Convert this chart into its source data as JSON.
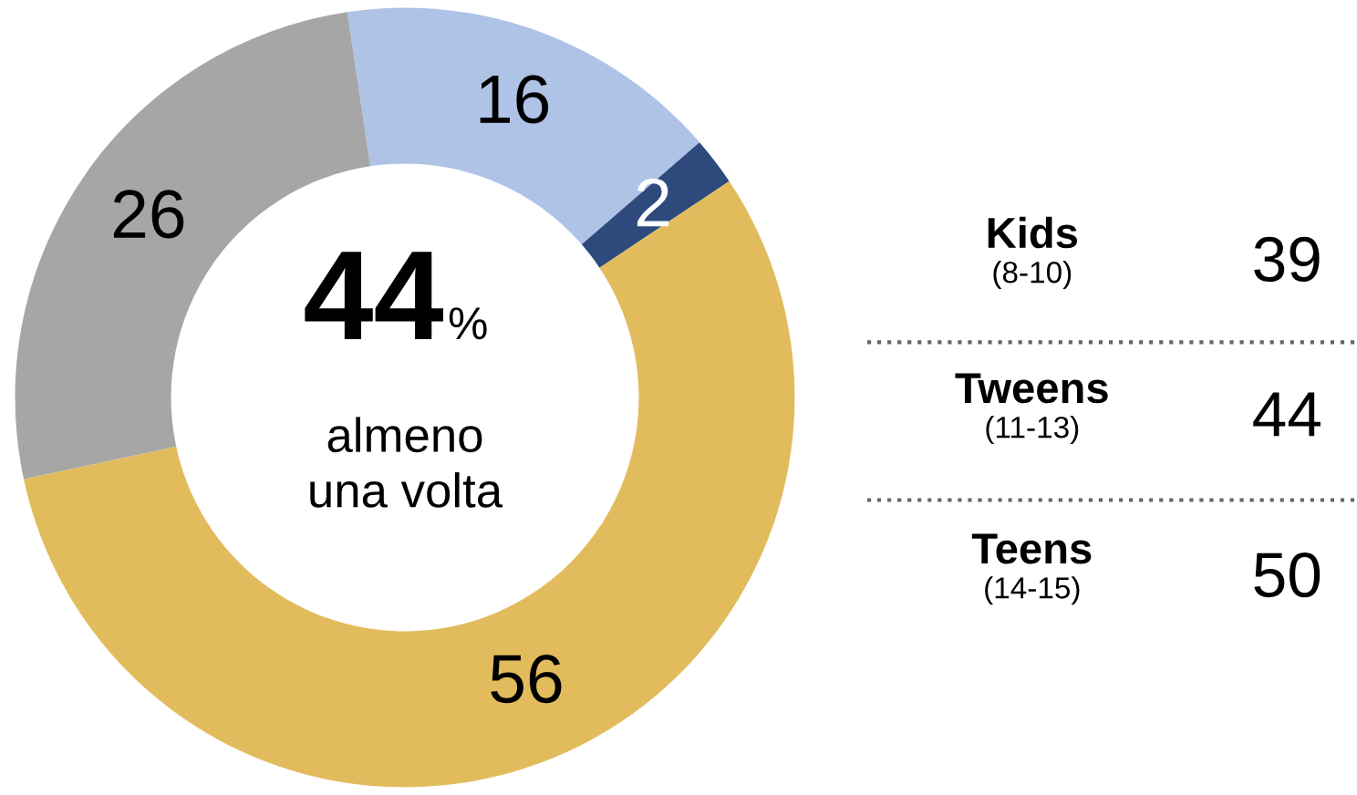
{
  "chart_data": [
    {
      "type": "donut",
      "categories": [
        null,
        null,
        null,
        null
      ],
      "values": [
        16,
        2,
        56,
        26
      ],
      "colors": [
        "#aec3e6",
        "#2e4a7d",
        "#e2bb5c",
        "#a6a6a6"
      ],
      "data_labels": true,
      "annotations": [
        "44",
        "%",
        "almeno\nuna volta"
      ]
    },
    {
      "type": "other",
      "categories": [
        "Kids",
        "Tweens",
        "Teens"
      ],
      "values": [
        39,
        44,
        50
      ],
      "data_labels": true,
      "annotations": [
        "(8-10)",
        "(11-13)",
        "(14-15)"
      ]
    }
  ]
}
